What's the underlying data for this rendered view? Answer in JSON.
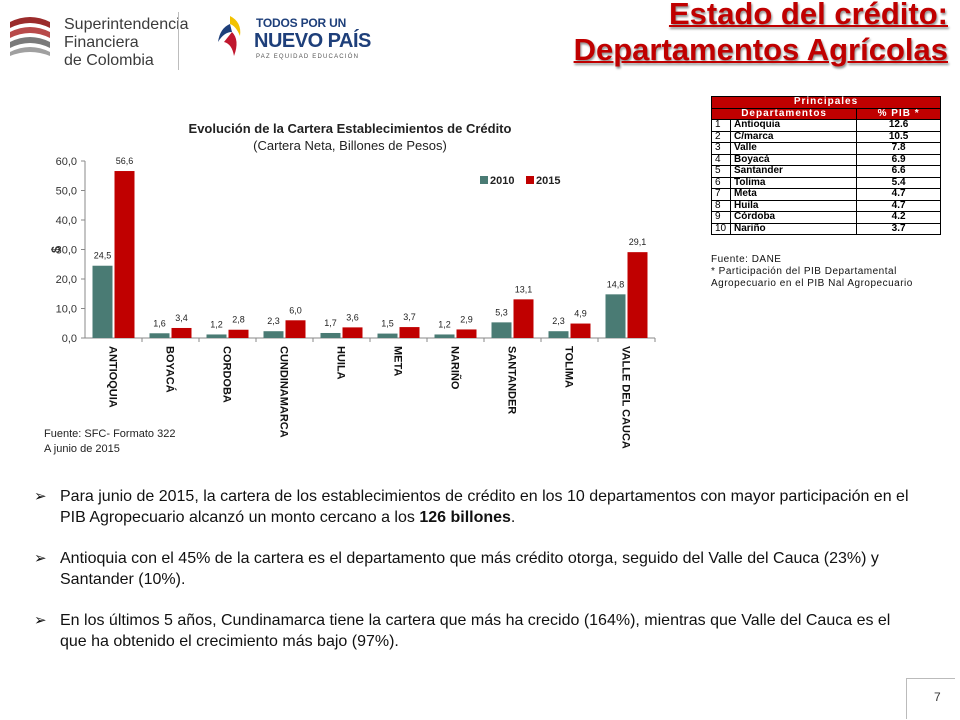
{
  "header": {
    "org_line1": "Superintendencia",
    "org_line2": "Financiera",
    "org_line3": "de Colombia",
    "gov_line1": "TODOS POR UN",
    "gov_line2": "NUEVO PAÍS",
    "gov_line3": "PAZ  EQUIDAD  EDUCACIÓN",
    "title_line1": "Estado del crédito:",
    "title_line2": "Departamentos Agrícolas"
  },
  "colors": {
    "series_2010": "#4a7b74",
    "series_2015": "#c00000",
    "title": "#c00000"
  },
  "chart_data": {
    "type": "bar",
    "title": "Evolución de la Cartera Establecimientos de Crédito",
    "subtitle": "(Cartera Neta, Billones de Pesos)",
    "ylabel": "$",
    "ylim": [
      0,
      60
    ],
    "yticks": [
      "0,0",
      "10,0",
      "20,0",
      "30,0",
      "40,0",
      "50,0",
      "60,0"
    ],
    "legend_position": "top-right",
    "categories": [
      "ANTIOQUIA",
      "BOYACÁ",
      "CORDOBA",
      "CUNDINAMARCA",
      "HUILA",
      "META",
      "NARIÑO",
      "SANTANDER",
      "TOLIMA",
      "VALLE DEL CAUCA"
    ],
    "series": [
      {
        "name": "2010",
        "values": [
          24.5,
          1.6,
          1.2,
          2.3,
          1.7,
          1.5,
          1.2,
          5.3,
          2.3,
          14.8
        ],
        "labels": [
          "24,5",
          "1,6",
          "1,2",
          "2,3",
          "1,7",
          "1,5",
          "1,2",
          "5,3",
          "2,3",
          "14,8"
        ]
      },
      {
        "name": "2015",
        "values": [
          56.6,
          3.4,
          2.8,
          6.0,
          3.6,
          3.7,
          2.9,
          13.1,
          4.9,
          29.1
        ],
        "labels": [
          "56,6",
          "3,4",
          "2,8",
          "6,0",
          "3,6",
          "3,7",
          "2,9",
          "13,1",
          "4,9",
          "29,1"
        ]
      }
    ]
  },
  "chart_source": {
    "line1": "Fuente: SFC- Formato 322",
    "line2": "A junio de 2015"
  },
  "principales": {
    "title": "Principales",
    "col1": "Departamentos",
    "col2": "% PIB *",
    "rows": [
      {
        "rank": "1",
        "name": "Antioquia",
        "pib": "12.6"
      },
      {
        "rank": "2",
        "name": "C/marca",
        "pib": "10.5"
      },
      {
        "rank": "3",
        "name": "Valle",
        "pib": "7.8"
      },
      {
        "rank": "4",
        "name": "Boyacá",
        "pib": "6.9"
      },
      {
        "rank": "5",
        "name": "Santander",
        "pib": "6.6"
      },
      {
        "rank": "6",
        "name": "Tolima",
        "pib": "5.4"
      },
      {
        "rank": "7",
        "name": "Meta",
        "pib": "4.7"
      },
      {
        "rank": "8",
        "name": "Huila",
        "pib": "4.7"
      },
      {
        "rank": "9",
        "name": "Córdoba",
        "pib": "4.2"
      },
      {
        "rank": "10",
        "name": "Nariño",
        "pib": "3.7"
      }
    ],
    "note1": "Fuente: DANE",
    "note2": "* Participación del PIB Departamental Agropecuario en el PIB Nal Agropecuario"
  },
  "bullets": {
    "b1_pre": "Para junio de 2015, la cartera de los establecimientos de crédito en los 10 departamentos con mayor participación en el PIB Agropecuario alcanzó un monto cercano a los ",
    "b1_bold": "126 billones",
    "b1_post": ".",
    "b2": "Antioquia con el 45% de la cartera es el departamento que más crédito otorga, seguido del Valle del Cauca (23%) y Santander (10%).",
    "b3": "En los últimos 5 años, Cundinamarca tiene la cartera que más ha crecido (164%), mientras que Valle del Cauca es el que ha obtenido el crecimiento más bajo (97%)."
  },
  "page_number": "7"
}
